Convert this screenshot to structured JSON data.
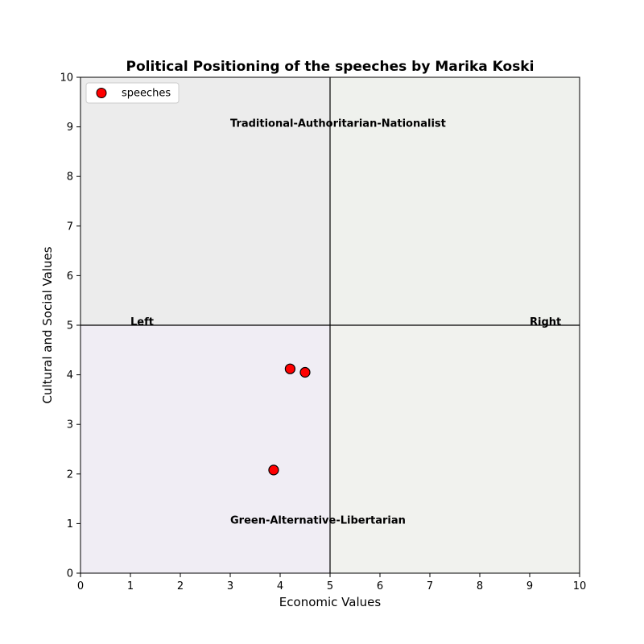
{
  "chart_data": {
    "type": "scatter",
    "title": "Political Positioning of the speeches by Marika Koski",
    "xlabel": "Economic Values",
    "ylabel": "Cultural and Social Values",
    "xlim": [
      0,
      10
    ],
    "ylim": [
      0,
      10
    ],
    "xticks": [
      0,
      1,
      2,
      3,
      4,
      5,
      6,
      7,
      8,
      9,
      10
    ],
    "yticks": [
      0,
      1,
      2,
      3,
      4,
      5,
      6,
      7,
      8,
      9,
      10
    ],
    "grid": false,
    "legend": {
      "placement": "top-left",
      "entries": [
        "speeches"
      ]
    },
    "series": [
      {
        "name": "speeches",
        "color": "#ff0000",
        "edge_color": "#000000",
        "points": [
          {
            "x": 4.2,
            "y": 4.12
          },
          {
            "x": 4.5,
            "y": 4.05
          },
          {
            "x": 3.87,
            "y": 2.08
          }
        ]
      }
    ],
    "reference_lines": {
      "x": 5,
      "y": 5
    },
    "quadrants": [
      {
        "name": "top-left",
        "x": [
          0,
          5
        ],
        "y": [
          5,
          10
        ],
        "color": "#ececec"
      },
      {
        "name": "top-right",
        "x": [
          5,
          10
        ],
        "y": [
          5,
          10
        ],
        "color": "#eff1ed"
      },
      {
        "name": "bottom-left",
        "x": [
          0,
          5
        ],
        "y": [
          0,
          5
        ],
        "color": "#f0edf4"
      },
      {
        "name": "bottom-right",
        "x": [
          5,
          10
        ],
        "y": [
          0,
          5
        ],
        "color": "#f1f2ee"
      }
    ],
    "annotations": [
      {
        "text": "Traditional-Authoritarian-Nationalist",
        "x": 3,
        "y": 9
      },
      {
        "text": "Green-Alternative-Libertarian",
        "x": 3,
        "y": 1
      },
      {
        "text": "Left",
        "x": 1,
        "y": 5
      },
      {
        "text": "Right",
        "x": 9,
        "y": 5
      }
    ]
  }
}
